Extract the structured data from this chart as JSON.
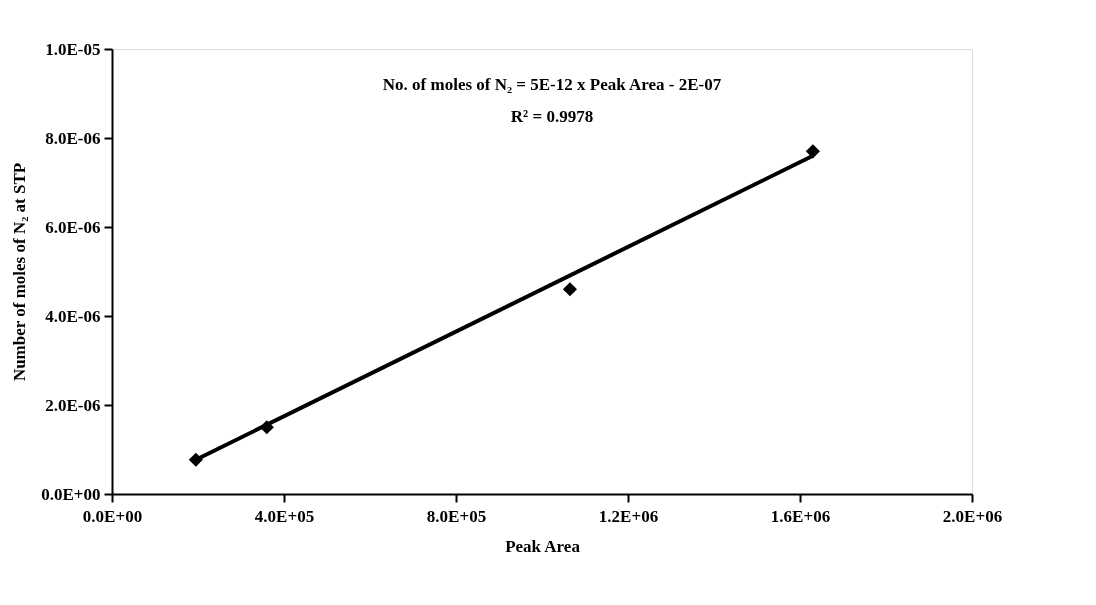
{
  "chart_data": {
    "type": "scatter",
    "xlabel": "Peak Area",
    "ylabel": "Number of moles of N₂ at STP",
    "annotations": [
      "No. of moles of N₂ = 5E-12 x Peak Area - 2E-07",
      "R² = 0.9978"
    ],
    "series": [
      {
        "color": "#000000",
        "marker": "diamond",
        "x": [
          195000,
          360000,
          1065000,
          1630000
        ],
        "values": [
          7.7e-07,
          1.5e-06,
          4.6e-06,
          7.7e-06
        ]
      },
      {
        "type": "line",
        "color": "#000000",
        "marker": "none",
        "line_style": "solid",
        "x": [
          195000,
          1630000
        ],
        "values": [
          7.7e-07,
          7.6e-06
        ]
      }
    ],
    "xlim": [
      0,
      2000000
    ],
    "ylim": [
      0,
      1e-05
    ],
    "xticks": [
      {
        "value": 0,
        "label": "0.0E+00"
      },
      {
        "value": 400000,
        "label": "4.0E+05"
      },
      {
        "value": 800000,
        "label": "8.0E+05"
      },
      {
        "value": 1200000,
        "label": "1.2E+06"
      },
      {
        "value": 1600000,
        "label": "1.6E+06"
      },
      {
        "value": 2000000,
        "label": "2.0E+06"
      }
    ],
    "yticks": [
      {
        "value": 0,
        "label": "0.0E+00"
      },
      {
        "value": 2e-06,
        "label": "2.0E-06"
      },
      {
        "value": 4e-06,
        "label": "4.0E-06"
      },
      {
        "value": 6e-06,
        "label": "6.0E-06"
      },
      {
        "value": 8e-06,
        "label": "8.0E-06"
      },
      {
        "value": 1e-05,
        "label": "1.0E-05"
      }
    ],
    "grid": false
  }
}
